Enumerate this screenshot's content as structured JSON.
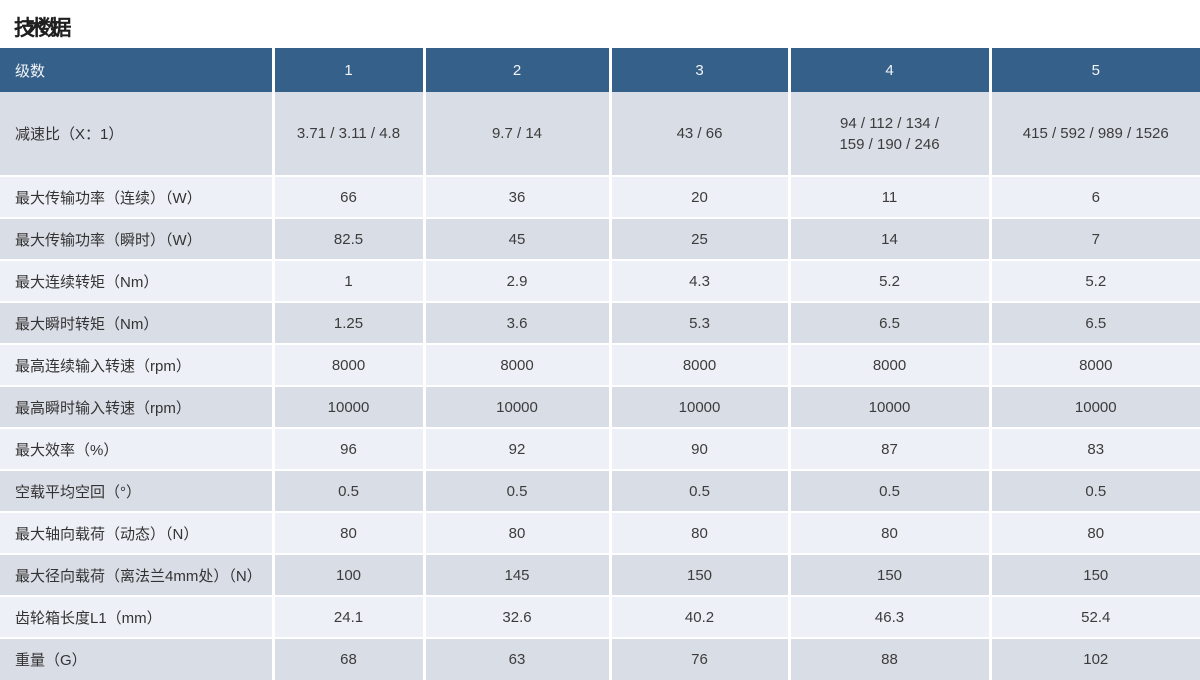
{
  "title": "技术数据",
  "colors": {
    "header_bg": "#356089",
    "row_dark": "#d9dde6",
    "row_light": "#eef0f7",
    "header_text": "#f2f4f7",
    "body_text": "#3c3c3c"
  },
  "table": {
    "header": {
      "label": "级数",
      "columns": [
        "1",
        "2",
        "3",
        "4",
        "5"
      ]
    },
    "rows": [
      {
        "label": "减速比（X：1）",
        "values": [
          "3.71 / 3.11 / 4.8",
          "9.7 / 14",
          "43 / 66",
          "94 / 112 / 134 /\n159 / 190 / 246",
          "415 / 592 / 989 / 1526"
        ]
      },
      {
        "label": "最大传输功率（连续）（W）",
        "values": [
          "66",
          "36",
          "20",
          "11",
          "6"
        ]
      },
      {
        "label": "最大传输功率（瞬时）（W）",
        "values": [
          "82.5",
          "45",
          "25",
          "14",
          "7"
        ]
      },
      {
        "label": "最大连续转矩（Nm）",
        "values": [
          "1",
          "2.9",
          "4.3",
          "5.2",
          "5.2"
        ]
      },
      {
        "label": "最大瞬时转矩（Nm）",
        "values": [
          "1.25",
          "3.6",
          "5.3",
          "6.5",
          "6.5"
        ]
      },
      {
        "label": "最高连续输入转速（rpm）",
        "values": [
          "8000",
          "8000",
          "8000",
          "8000",
          "8000"
        ]
      },
      {
        "label": "最高瞬时输入转速（rpm）",
        "values": [
          "10000",
          "10000",
          "10000",
          "10000",
          "10000"
        ]
      },
      {
        "label": "最大效率（%）",
        "values": [
          "96",
          "92",
          "90",
          "87",
          "83"
        ]
      },
      {
        "label": "空载平均空回（°）",
        "values": [
          "0.5",
          "0.5",
          "0.5",
          "0.5",
          "0.5"
        ]
      },
      {
        "label": "最大轴向载荷（动态）（N）",
        "values": [
          "80",
          "80",
          "80",
          "80",
          "80"
        ]
      },
      {
        "label": "最大径向载荷（离法兰4mm处）（N）",
        "values": [
          "100",
          "145",
          "150",
          "150",
          "150"
        ]
      },
      {
        "label": "齿轮箱长度L1（mm）",
        "values": [
          "24.1",
          "32.6",
          "40.2",
          "46.3",
          "52.4"
        ]
      },
      {
        "label": "重量（G）",
        "values": [
          "68",
          "63",
          "76",
          "88",
          "102"
        ]
      }
    ]
  }
}
